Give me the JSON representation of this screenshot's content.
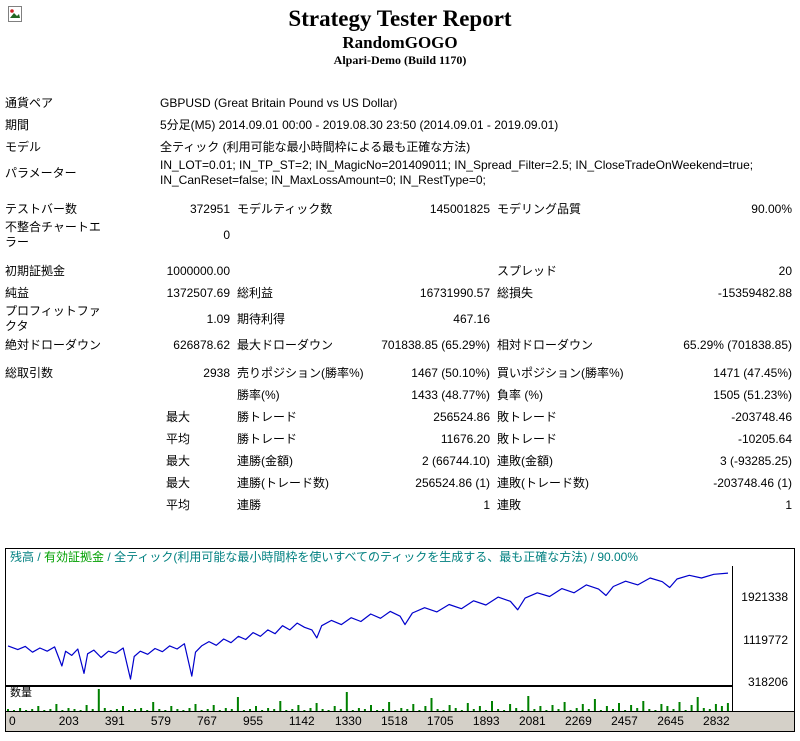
{
  "header": {
    "title": "Strategy Tester Report",
    "program": "RandomGOGO",
    "server": "Alpari-Demo (Build 1170)"
  },
  "info": {
    "symbol": {
      "label": "通貨ペア",
      "value": "GBPUSD (Great Britain Pound vs US Dollar)"
    },
    "period": {
      "label": "期間",
      "value": "5分足(M5) 2014.09.01 00:00 - 2019.08.30 23:50 (2014.09.01 - 2019.09.01)"
    },
    "model": {
      "label": "モデル",
      "value": "全ティック (利用可能な最小時間枠による最も正確な方法)"
    },
    "parameters": {
      "label": "パラメーター",
      "value": "IN_LOT=0.01; IN_TP_ST=2; IN_MagicNo=201409011; IN_Spread_Filter=2.5; IN_CloseTradeOnWeekend=true; IN_CanReset=false; IN_MaxLossAmount=0; IN_RestType=0;"
    }
  },
  "stats": [
    {
      "l1": "テストバー数",
      "v1": "372951",
      "l2": "モデルティック数",
      "v2": "145001825",
      "l3": "モデリング品質",
      "v3": "90.00%"
    },
    {
      "l1": "不整合チャートエラー",
      "v1": "0"
    },
    {
      "l1": "初期証拠金",
      "v1": "1000000.00",
      "l3": "スプレッド",
      "v3": "20"
    },
    {
      "l1": "純益",
      "v1": "1372507.69",
      "l2": "総利益",
      "v2": "16731990.57",
      "l3": "総損失",
      "v3": "-15359482.88"
    },
    {
      "l1": "プロフィットファクタ",
      "v1": "1.09",
      "l2": "期待利得",
      "v2": "467.16"
    },
    {
      "l1": "絶対ドローダウン",
      "v1": "626878.62",
      "l2": "最大ドローダウン",
      "v2": "701838.85 (65.29%)",
      "l3": "相対ドローダウン",
      "v3": "65.29% (701838.85)"
    },
    {
      "l1": "総取引数",
      "v1": "2938",
      "l2": "売りポジション(勝率%)",
      "v2": "1467 (50.10%)",
      "l3": "買いポジション(勝率%)",
      "v3": "1471 (47.45%)"
    },
    {
      "l2": "勝率(%)",
      "v2": "1433 (48.77%)",
      "l3": "負率 (%)",
      "v3": "1505 (51.23%)"
    },
    {
      "prefix": "最大",
      "l2": "勝トレード",
      "v2": "256524.86",
      "l3": "敗トレード",
      "v3": "-203748.46"
    },
    {
      "prefix": "平均",
      "l2": "勝トレード",
      "v2": "11676.20",
      "l3": "敗トレード",
      "v3": "-10205.64"
    },
    {
      "prefix": "最大",
      "l2": "連勝(金額)",
      "v2": "2 (66744.10)",
      "l3": "連敗(金額)",
      "v3": "3 (-93285.25)"
    },
    {
      "prefix": "最大",
      "l2": "連勝(トレード数)",
      "v2": "256524.86 (1)",
      "l3": "連敗(トレード数)",
      "v3": "-203748.46 (1)"
    },
    {
      "prefix": "平均",
      "l2": "連勝",
      "v2": "1",
      "l3": "連敗",
      "v3": "1"
    }
  ],
  "graph": {
    "legend": {
      "balance_label": "残高",
      "separator": " / ",
      "equity_label": "有効証拠金",
      "model_text": "全ティック(利用可能な最小時間枠を使いすべてのティックを生成する、最も正確な方法)",
      "quality": "90.00%"
    },
    "volume_label": "数量",
    "y_ticks": [
      "1921338",
      "1119772",
      "318206"
    ],
    "x_ticks": [
      "0",
      "203",
      "391",
      "579",
      "767",
      "955",
      "1142",
      "1330",
      "1518",
      "1705",
      "1893",
      "2081",
      "2269",
      "2457",
      "2645",
      "2832"
    ],
    "colors": {
      "balance_line": "#0000cc",
      "volume_bar": "#008000",
      "legend_teal": "#008080",
      "legend_green": "#00a000",
      "axis_bg": "#d4d0c8"
    },
    "balance_series": [
      [
        0,
        1000000
      ],
      [
        40,
        930000
      ],
      [
        70,
        990000
      ],
      [
        100,
        880000
      ],
      [
        130,
        960000
      ],
      [
        160,
        900000
      ],
      [
        190,
        980000
      ],
      [
        220,
        620000
      ],
      [
        235,
        900000
      ],
      [
        260,
        820000
      ],
      [
        285,
        940000
      ],
      [
        310,
        480000
      ],
      [
        325,
        850000
      ],
      [
        350,
        920000
      ],
      [
        380,
        780000
      ],
      [
        410,
        900000
      ],
      [
        440,
        860000
      ],
      [
        470,
        960000
      ],
      [
        500,
        373200
      ],
      [
        515,
        800000
      ],
      [
        540,
        900000
      ],
      [
        570,
        840000
      ],
      [
        600,
        950000
      ],
      [
        630,
        890000
      ],
      [
        660,
        1000000
      ],
      [
        690,
        940000
      ],
      [
        720,
        1040000
      ],
      [
        750,
        430000
      ],
      [
        765,
        880000
      ],
      [
        790,
        1000000
      ],
      [
        820,
        1080000
      ],
      [
        850,
        1010000
      ],
      [
        880,
        1130000
      ],
      [
        910,
        1060000
      ],
      [
        940,
        1180000
      ],
      [
        970,
        1120000
      ],
      [
        1000,
        1250000
      ],
      [
        1030,
        1180000
      ],
      [
        1060,
        1300000
      ],
      [
        1090,
        1230000
      ],
      [
        1120,
        1380000
      ],
      [
        1150,
        1300000
      ],
      [
        1180,
        1430000
      ],
      [
        1210,
        1350000
      ],
      [
        1240,
        1300000
      ],
      [
        1260,
        1150000
      ],
      [
        1280,
        1380000
      ],
      [
        1320,
        1480000
      ],
      [
        1360,
        1400000
      ],
      [
        1400,
        1530000
      ],
      [
        1440,
        1460000
      ],
      [
        1480,
        1600000
      ],
      [
        1520,
        1520000
      ],
      [
        1560,
        1650000
      ],
      [
        1600,
        1560000
      ],
      [
        1620,
        1400000
      ],
      [
        1650,
        1620000
      ],
      [
        1700,
        1720000
      ],
      [
        1750,
        1640000
      ],
      [
        1800,
        1780000
      ],
      [
        1850,
        1700000
      ],
      [
        1900,
        1850000
      ],
      [
        1950,
        1770000
      ],
      [
        2000,
        1920000
      ],
      [
        2050,
        1840000
      ],
      [
        2080,
        1680000
      ],
      [
        2110,
        1900000
      ],
      [
        2160,
        2000000
      ],
      [
        2210,
        1930000
      ],
      [
        2260,
        2080000
      ],
      [
        2310,
        2000000
      ],
      [
        2360,
        2150000
      ],
      [
        2410,
        2070000
      ],
      [
        2440,
        1950000
      ],
      [
        2470,
        2120000
      ],
      [
        2520,
        2220000
      ],
      [
        2570,
        2150000
      ],
      [
        2620,
        2280000
      ],
      [
        2670,
        2210000
      ],
      [
        2700,
        2100000
      ],
      [
        2730,
        2260000
      ],
      [
        2780,
        2330000
      ],
      [
        2830,
        2280000
      ],
      [
        2880,
        2350000
      ],
      [
        2938,
        2372508
      ]
    ],
    "volume_series": [
      2,
      1,
      3,
      1,
      2,
      4,
      1,
      2,
      6,
      1,
      3,
      2,
      1,
      5,
      2,
      19,
      3,
      1,
      2,
      4,
      1,
      2,
      3,
      1,
      8,
      2,
      1,
      4,
      2,
      1,
      3,
      6,
      1,
      2,
      5,
      1,
      3,
      2,
      12,
      1,
      2,
      4,
      1,
      3,
      2,
      9,
      1,
      2,
      5,
      1,
      3,
      7,
      2,
      1,
      4,
      2,
      16,
      1,
      3,
      2,
      5,
      1,
      2,
      8,
      1,
      3,
      2,
      6,
      1,
      4,
      11,
      2,
      1,
      5,
      3,
      1,
      7,
      2,
      4,
      1,
      9,
      2,
      1,
      6,
      3,
      1,
      13,
      2,
      4,
      1,
      5,
      2,
      8,
      1,
      3,
      6,
      2,
      10,
      1,
      4,
      2,
      7,
      1,
      5,
      3,
      9,
      2,
      1,
      6,
      4,
      2,
      8,
      1,
      5,
      12,
      3,
      2,
      6,
      4,
      7
    ]
  }
}
